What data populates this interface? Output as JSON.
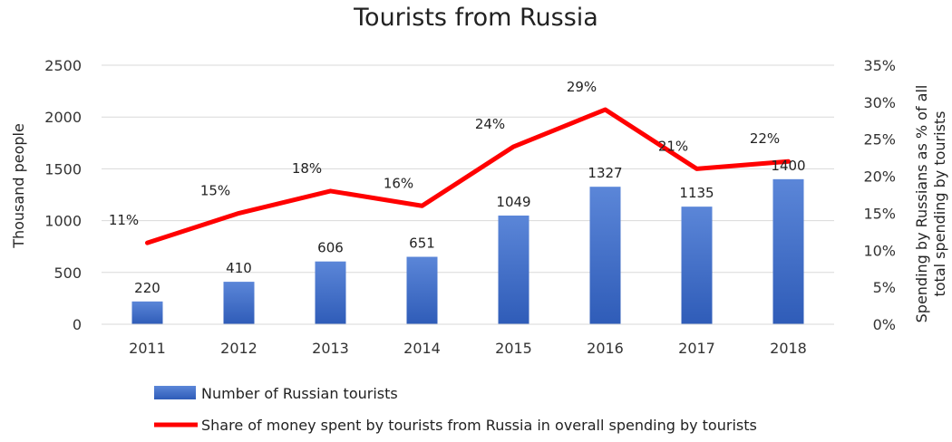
{
  "chart_data": {
    "type": "bar",
    "title": "Tourists from Russia",
    "categories": [
      "2011",
      "2012",
      "2013",
      "2014",
      "2015",
      "2016",
      "2017",
      "2018"
    ],
    "series": [
      {
        "name": "Number of Russian tourists",
        "type": "bar",
        "axis": "left",
        "values": [
          220,
          410,
          606,
          651,
          1049,
          1327,
          1135,
          1400
        ],
        "labels": [
          "220",
          "410",
          "606",
          "651",
          "1049",
          "1327",
          "1135",
          "1400"
        ],
        "color": "#4a76cc"
      },
      {
        "name": "Share of money spent by tourists from Russia in overall spending by tourists",
        "type": "line",
        "axis": "right",
        "values": [
          11,
          15,
          18,
          16,
          24,
          29,
          21,
          22
        ],
        "labels": [
          "11%",
          "15%",
          "18%",
          "16%",
          "24%",
          "29%",
          "21%",
          "22%"
        ],
        "color": "#ff0000"
      }
    ],
    "ylabel": "Thousand people",
    "ylabel_right": "Spending by Russians as % of all total spending by tourists",
    "ylim": [
      0,
      2500
    ],
    "ylim_right": [
      0,
      35
    ],
    "yticks": [
      "0",
      "500",
      "1000",
      "1500",
      "2000",
      "2500"
    ],
    "yticks_right": [
      "0%",
      "5%",
      "10%",
      "15%",
      "20%",
      "25%",
      "30%",
      "35%"
    ],
    "grid": true,
    "legend_position": "bottom"
  }
}
